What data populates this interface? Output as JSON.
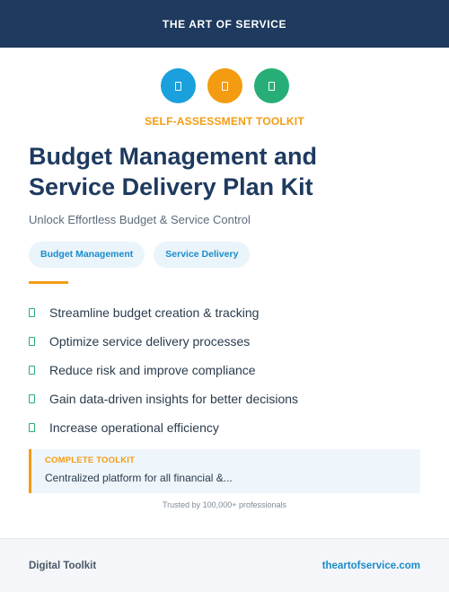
{
  "header": {
    "brand": "THE ART OF SERVICE"
  },
  "icons": [
    {
      "name": "document-icon",
      "color": "#1aa0dc"
    },
    {
      "name": "document-icon",
      "color": "#f39c12"
    },
    {
      "name": "document-icon",
      "color": "#27ae76"
    }
  ],
  "kicker": "SELF-ASSESSMENT TOOLKIT",
  "title_line1": "Budget Management and",
  "title_line2": "Service Delivery Plan Kit",
  "subtitle": "Unlock Effortless Budget & Service Control",
  "tags": [
    "Budget Management",
    "Service Delivery"
  ],
  "features": [
    "Streamline budget creation & tracking",
    "Optimize service delivery processes",
    "Reduce risk and improve compliance",
    "Gain data-driven insights for better decisions",
    "Increase operational efficiency"
  ],
  "callout": {
    "label": "COMPLETE TOOLKIT",
    "text": "Centralized platform for all financial &..."
  },
  "trusted": "Trusted by 100,000+ professionals",
  "footer": {
    "left": "Digital Toolkit",
    "right": "theartofservice.com"
  },
  "colors": {
    "navy": "#1e3a5f",
    "accent_orange": "#f39c12",
    "accent_blue": "#1aa0dc",
    "accent_green": "#27ae76"
  }
}
